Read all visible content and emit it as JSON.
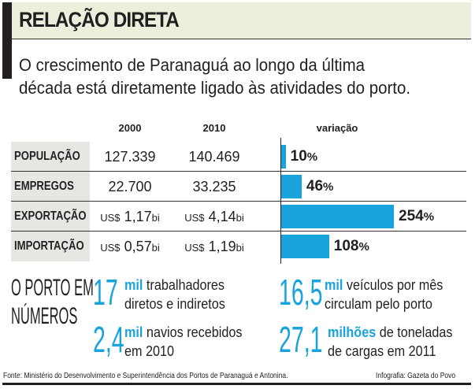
{
  "header": {
    "title": "RELAÇÃO DIRETA",
    "subtitle_line1": "O crescimento de Paranaguá ao longo da última",
    "subtitle_line2": "década está diretamente ligado às atividades do porto."
  },
  "chart_data": {
    "type": "table",
    "columns": [
      "2000",
      "2010",
      "variação"
    ],
    "rows": [
      {
        "label": "POPULAÇÃO",
        "prefix2000": "",
        "v2000": "127.339",
        "suffix2000": "",
        "prefix2010": "",
        "v2010": "140.469",
        "suffix2010": "",
        "variation": 10,
        "variation_label": "10"
      },
      {
        "label": "EMPREGOS",
        "prefix2000": "",
        "v2000": "22.700",
        "suffix2000": "",
        "prefix2010": "",
        "v2010": "33.235",
        "suffix2010": "",
        "variation": 46,
        "variation_label": "46"
      },
      {
        "label": "EXPORTAÇÃO",
        "prefix2000": "US$",
        "v2000": "1,17",
        "suffix2000": "bi",
        "prefix2010": "US$",
        "v2010": "4,14",
        "suffix2010": "bi",
        "variation": 254,
        "variation_label": "254"
      },
      {
        "label": "IMPORTAÇÃO",
        "prefix2000": "US$",
        "v2000": "0,57",
        "suffix2000": "bi",
        "prefix2010": "US$",
        "v2010": "1,19",
        "suffix2010": "bi",
        "variation": 108,
        "variation_label": "108"
      }
    ],
    "pct_sign": "%",
    "variation_max": 254,
    "bar_color": "#18a3dc"
  },
  "numbers": {
    "title_line1": "O PORTO EM",
    "title_line2": "NÚMEROS",
    "stats": [
      {
        "value": "17",
        "unit": "mil",
        "line1": "trabalhadores",
        "line2": "diretos e indiretos"
      },
      {
        "value": "16,5",
        "unit": "mil",
        "line1": "veículos por mês",
        "line2": "circulam pelo porto"
      },
      {
        "value": "2,4",
        "unit": "mil",
        "line1": "navios recebidos",
        "line2": "em 2010"
      },
      {
        "value": "27,1",
        "unit": "milhões",
        "line1": "de toneladas",
        "line2": "de cargas em 2011"
      }
    ]
  },
  "footer": {
    "source": "Fonte: Ministério do Desenvolvimento e Superintendência dos Portos de Paranaguá e Antonina.",
    "credit": "Infografia: Gazeta do Povo"
  }
}
